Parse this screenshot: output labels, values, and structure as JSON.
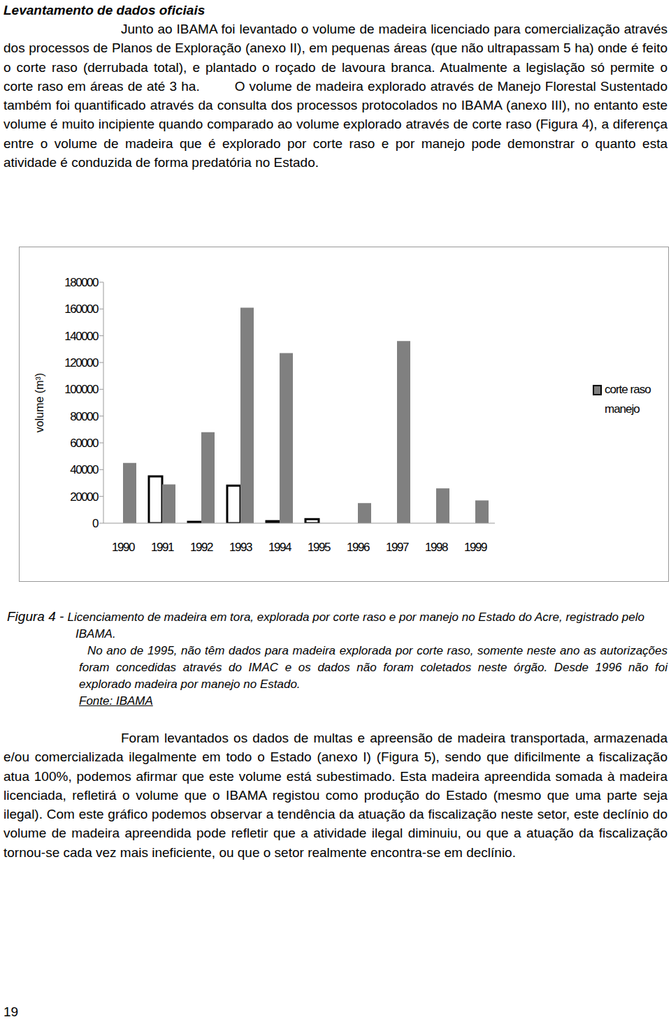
{
  "document": {
    "heading": "Levantamento de dados oficiais",
    "paragraph_1": "Junto ao IBAMA foi levantado o volume de madeira licenciado para comercialização através dos processos de Planos de Exploração (anexo II), em pequenas áreas (que não ultrapassam 5 ha) onde é feito o corte raso (derrubada total), e plantado o roçado de lavoura branca. Atualmente a legislação só permite o corte raso em áreas de até 3 ha.",
    "paragraph_2": "O volume de madeira explorado através de Manejo Florestal Sustentado também foi quantificado através da consulta dos processos protocolados no IBAMA (anexo III), no entanto este volume é muito incipiente quando comparado ao volume explorado através de corte raso (Figura 4), a diferença entre o volume de madeira que é explorado por corte raso e por manejo pode demonstrar o quanto esta atividade é conduzida de forma predatória no Estado.",
    "caption_label": "Figura 4 - ",
    "caption_text": "Licenciamento de madeira em tora, explorada por corte raso e por manejo no Estado do Acre, registrado pelo IBAMA.",
    "caption_note": "No ano de 1995, não têm dados para madeira explorada por corte raso, somente neste ano as autorizações foram concedidas através do IMAC e os dados não foram coletados neste órgão. Desde 1996 não foi explorado madeira por manejo no Estado.",
    "caption_source": "Fonte: IBAMA",
    "paragraph_3": "Foram levantados os dados de multas e apreensão de madeira transportada, armazenada e/ou comercializada ilegalmente em todo o Estado (anexo I) (Figura 5), sendo que dificilmente a fiscalização atua 100%, podemos afirmar que este volume está subestimado. Esta madeira apreendida somada à madeira licenciada, refletirá o volume que o IBAMA registou como produção do Estado (mesmo que uma parte seja ilegal). Com este gráfico podemos observar a tendência da atuação da fiscalização neste setor, este declínio do volume de madeira apreendida pode refletir que a atividade ilegal diminuiu, ou que a atuação da fiscalização tornou-se cada vez mais ineficiente, ou que o setor realmente encontra-se em declínio.",
    "page_number": "19"
  },
  "chart_data": {
    "type": "bar",
    "y_label": "volume (m³)",
    "categories": [
      "1990",
      "1991",
      "1992",
      "1993",
      "1994",
      "1995",
      "1996",
      "1997",
      "1998",
      "1999"
    ],
    "series": [
      {
        "name": "manejo",
        "color": "#ffffff",
        "values": [
          null,
          35000,
          1000,
          28000,
          1500,
          3000,
          null,
          null,
          null,
          null
        ]
      },
      {
        "name": "corte raso",
        "color": "#808080",
        "values": [
          45000,
          29000,
          68000,
          161000,
          127000,
          null,
          15000,
          136000,
          26000,
          17000
        ]
      }
    ],
    "ylim": [
      0,
      180000
    ],
    "yticks": [
      0,
      20000,
      40000,
      60000,
      80000,
      100000,
      120000,
      140000,
      160000,
      180000
    ],
    "grid": false,
    "legend": "right"
  }
}
